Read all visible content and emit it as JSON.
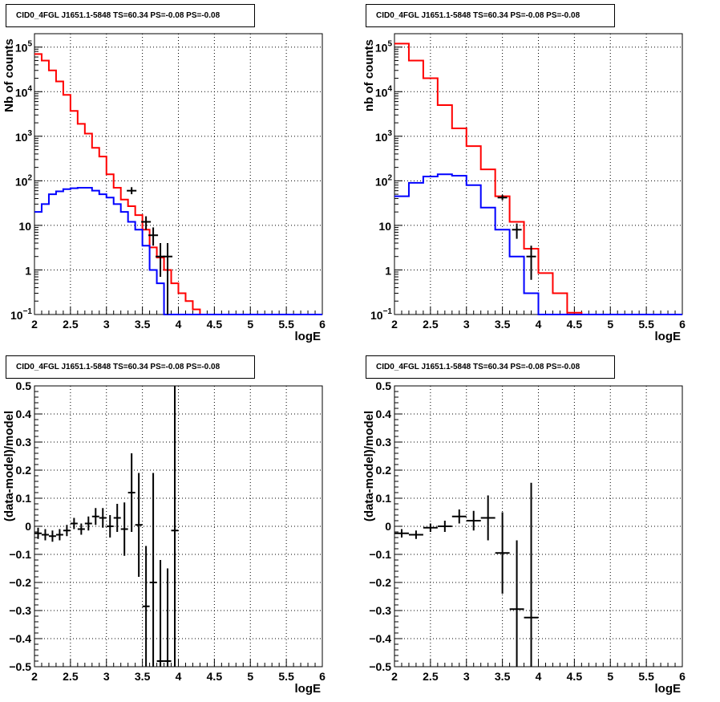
{
  "chart_data": [
    {
      "type": "line",
      "title": "CID0_4FGL J1651.1-5848 TS=60.34 PS=-0.08 PS=-0.08",
      "xlabel": "logE",
      "ylabel": "Nb of counts",
      "xlim": [
        2,
        6
      ],
      "ylim": [
        0.1,
        200000
      ],
      "yscale": "log",
      "grid": true,
      "xticks": [
        "2",
        "2.5",
        "3",
        "3.5",
        "4",
        "4.5",
        "5",
        "5.5",
        "6"
      ],
      "yticks": [
        {
          "v": 0.1,
          "base": "10",
          "exp": "−1"
        },
        {
          "v": 1,
          "base": "1",
          "exp": ""
        },
        {
          "v": 10,
          "base": "10",
          "exp": ""
        },
        {
          "v": 100,
          "base": "10",
          "exp": "2"
        },
        {
          "v": 1000,
          "base": "10",
          "exp": "3"
        },
        {
          "v": 10000,
          "base": "10",
          "exp": "4"
        },
        {
          "v": 100000,
          "base": "10",
          "exp": "5"
        }
      ],
      "bin_edges": [
        2.0,
        2.1,
        2.2,
        2.3,
        2.4,
        2.5,
        2.6,
        2.7,
        2.8,
        2.9,
        3.0,
        3.1,
        3.2,
        3.3,
        3.4,
        3.5,
        3.6,
        3.7,
        3.8,
        3.9,
        4.0,
        4.1,
        4.2,
        4.3,
        4.4,
        4.5,
        4.6,
        4.7,
        4.8,
        4.9,
        5.0,
        5.1,
        5.2,
        5.3,
        5.4,
        5.5,
        5.6,
        5.7,
        5.8,
        5.9,
        6.0
      ],
      "series": [
        {
          "color": "#ff0000",
          "style": "step",
          "values": [
            70000,
            50000,
            30000,
            17000,
            8500,
            3700,
            1900,
            1150,
            550,
            350,
            140,
            70,
            38,
            27,
            17,
            8,
            3.2,
            1.9,
            1.0,
            0.5,
            0.3,
            0.2,
            0.13,
            0.1,
            0.1,
            0.1,
            0.1,
            0.1,
            0.1,
            0.1,
            0.1,
            0.1,
            0.1,
            0.1,
            0.1,
            0.1,
            0.1,
            0.1,
            0.1,
            0.1
          ]
        },
        {
          "color": "#0000ff",
          "style": "step",
          "values": [
            20,
            30,
            50,
            58,
            65,
            68,
            70,
            70,
            60,
            50,
            42,
            30,
            20,
            12,
            8,
            3.5,
            1.0,
            0.5,
            0.1,
            0.1,
            0.1,
            0.1,
            0.1,
            0.1,
            0.1,
            0.1,
            0.1,
            0.1,
            0.1,
            0.1,
            0.1,
            0.1,
            0.1,
            0.1,
            0.1,
            0.1,
            0.1,
            0.1,
            0.1,
            0.1
          ]
        },
        {
          "color": "#000000",
          "style": "errorbar",
          "points": [
            {
              "x": 3.35,
              "y": 60,
              "ylo": 50,
              "yhi": 72
            },
            {
              "x": 3.55,
              "y": 12,
              "ylo": 8,
              "yhi": 16
            },
            {
              "x": 3.65,
              "y": 6,
              "ylo": 3.5,
              "yhi": 9
            },
            {
              "x": 3.75,
              "y": 2,
              "ylo": 0.7,
              "yhi": 4
            },
            {
              "x": 3.85,
              "y": 2,
              "ylo": 0.1,
              "yhi": 4
            }
          ]
        }
      ]
    },
    {
      "type": "line",
      "title": "CID0_4FGL J1651.1-5848 TS=60.34 PS=-0.08 PS=-0.08",
      "xlabel": "logE",
      "ylabel": "nb of counts",
      "xlim": [
        2,
        6
      ],
      "ylim": [
        0.1,
        200000
      ],
      "yscale": "log",
      "grid": true,
      "xticks": [
        "2",
        "2.5",
        "3",
        "3.5",
        "4",
        "4.5",
        "5",
        "5.5",
        "6"
      ],
      "yticks": [
        {
          "v": 0.1,
          "base": "10",
          "exp": "−1"
        },
        {
          "v": 1,
          "base": "1",
          "exp": ""
        },
        {
          "v": 10,
          "base": "10",
          "exp": ""
        },
        {
          "v": 100,
          "base": "10",
          "exp": "2"
        },
        {
          "v": 1000,
          "base": "10",
          "exp": "3"
        },
        {
          "v": 10000,
          "base": "10",
          "exp": "4"
        },
        {
          "v": 100000,
          "base": "10",
          "exp": "5"
        }
      ],
      "bin_edges": [
        2.0,
        2.2,
        2.4,
        2.6,
        2.8,
        3.0,
        3.2,
        3.4,
        3.6,
        3.8,
        4.0,
        4.2,
        4.4,
        4.6,
        4.8,
        5.0,
        5.2,
        5.4,
        5.6,
        5.8,
        6.0
      ],
      "series": [
        {
          "color": "#ff0000",
          "style": "step",
          "values": [
            120000,
            50000,
            20000,
            5000,
            1500,
            600,
            180,
            45,
            12,
            3,
            0.85,
            0.3,
            0.11,
            0.1,
            0.1,
            0.1,
            0.1,
            0.1,
            0.1,
            0.1
          ]
        },
        {
          "color": "#0000ff",
          "style": "step",
          "values": [
            45,
            90,
            125,
            140,
            130,
            80,
            25,
            8,
            2,
            0.3,
            0.1,
            0.1,
            0.1,
            0.1,
            0.1,
            0.1,
            0.1,
            0.1,
            0.1,
            0.1
          ]
        },
        {
          "color": "#000000",
          "style": "errorbar",
          "points": [
            {
              "x": 3.5,
              "y": 42,
              "ylo": 37,
              "yhi": 48
            },
            {
              "x": 3.7,
              "y": 8,
              "ylo": 5,
              "yhi": 11
            },
            {
              "x": 3.9,
              "y": 2,
              "ylo": 0.6,
              "yhi": 3.5
            }
          ]
        }
      ]
    },
    {
      "type": "scatter",
      "title": "CID0_4FGL J1651.1-5848 TS=60.34 PS=-0.08 PS=-0.08",
      "xlabel": "logE",
      "ylabel": "(data-model)/model",
      "xlim": [
        2,
        6
      ],
      "ylim": [
        -0.5,
        0.5
      ],
      "yscale": "linear",
      "grid": true,
      "xticks": [
        "2",
        "2.5",
        "3",
        "3.5",
        "4",
        "4.5",
        "5",
        "5.5",
        "6"
      ],
      "yticks": [
        {
          "v": -0.5,
          "label": "−0.5"
        },
        {
          "v": -0.4,
          "label": "−0.4"
        },
        {
          "v": -0.3,
          "label": "−0.3"
        },
        {
          "v": -0.2,
          "label": "−0.2"
        },
        {
          "v": -0.1,
          "label": "−0.1"
        },
        {
          "v": 0,
          "label": "0"
        },
        {
          "v": 0.1,
          "label": "0.1"
        },
        {
          "v": 0.2,
          "label": "0.2"
        },
        {
          "v": 0.3,
          "label": "0.3"
        },
        {
          "v": 0.4,
          "label": "0.4"
        },
        {
          "v": 0.5,
          "label": "0.5"
        }
      ],
      "bin_width": 0.1,
      "series": [
        {
          "color": "#000000",
          "style": "errorbar",
          "points": [
            {
              "x": 2.05,
              "y": -0.025,
              "err": 0.02
            },
            {
              "x": 2.15,
              "y": -0.03,
              "err": 0.02
            },
            {
              "x": 2.25,
              "y": -0.035,
              "err": 0.02
            },
            {
              "x": 2.35,
              "y": -0.03,
              "err": 0.02
            },
            {
              "x": 2.45,
              "y": -0.015,
              "err": 0.02
            },
            {
              "x": 2.55,
              "y": 0.01,
              "err": 0.02
            },
            {
              "x": 2.65,
              "y": -0.01,
              "err": 0.02
            },
            {
              "x": 2.75,
              "y": 0.01,
              "err": 0.025
            },
            {
              "x": 2.85,
              "y": 0.035,
              "err": 0.03
            },
            {
              "x": 2.95,
              "y": 0.03,
              "err": 0.035
            },
            {
              "x": 3.05,
              "y": 0.0,
              "err": 0.04
            },
            {
              "x": 3.15,
              "y": 0.03,
              "err": 0.05
            },
            {
              "x": 3.25,
              "y": -0.01,
              "err": 0.095
            },
            {
              "x": 3.35,
              "y": 0.12,
              "err": 0.14
            },
            {
              "x": 3.45,
              "y": 0.005,
              "err": 0.185
            },
            {
              "x": 3.55,
              "y": -0.285,
              "err": 0.215
            },
            {
              "x": 3.65,
              "y": -0.2,
              "err": 0.39
            },
            {
              "x": 3.75,
              "y": -0.48,
              "err": 0.36
            },
            {
              "x": 3.85,
              "y": -0.48,
              "err": 0.33
            },
            {
              "x": 3.95,
              "y": -0.015,
              "err": 0.6
            }
          ]
        }
      ]
    },
    {
      "type": "scatter",
      "title": "CID0_4FGL J1651.1-5848 TS=60.34 PS=-0.08 PS=-0.08",
      "xlabel": "logE",
      "ylabel": "(data-model)/model",
      "xlim": [
        2,
        6
      ],
      "ylim": [
        -0.5,
        0.5
      ],
      "yscale": "linear",
      "grid": true,
      "xticks": [
        "2",
        "2.5",
        "3",
        "3.5",
        "4",
        "4.5",
        "5",
        "5.5",
        "6"
      ],
      "yticks": [
        {
          "v": -0.5,
          "label": "−0.5"
        },
        {
          "v": -0.4,
          "label": "−0.4"
        },
        {
          "v": -0.3,
          "label": "−0.3"
        },
        {
          "v": -0.2,
          "label": "−0.2"
        },
        {
          "v": -0.1,
          "label": "−0.1"
        },
        {
          "v": 0,
          "label": "0"
        },
        {
          "v": 0.1,
          "label": "0.1"
        },
        {
          "v": 0.2,
          "label": "0.2"
        },
        {
          "v": 0.3,
          "label": "0.3"
        },
        {
          "v": 0.4,
          "label": "0.4"
        },
        {
          "v": 0.5,
          "label": "0.5"
        }
      ],
      "bin_width": 0.2,
      "series": [
        {
          "color": "#000000",
          "style": "errorbar",
          "points": [
            {
              "x": 2.1,
              "y": -0.025,
              "err": 0.015
            },
            {
              "x": 2.3,
              "y": -0.03,
              "err": 0.015
            },
            {
              "x": 2.5,
              "y": -0.005,
              "err": 0.015
            },
            {
              "x": 2.7,
              "y": 0.0,
              "err": 0.02
            },
            {
              "x": 2.9,
              "y": 0.035,
              "err": 0.025
            },
            {
              "x": 3.1,
              "y": 0.02,
              "err": 0.035
            },
            {
              "x": 3.3,
              "y": 0.03,
              "err": 0.08
            },
            {
              "x": 3.5,
              "y": -0.095,
              "err": 0.145
            },
            {
              "x": 3.7,
              "y": -0.295,
              "err": 0.245
            },
            {
              "x": 3.9,
              "y": -0.325,
              "err": 0.48
            }
          ]
        }
      ]
    }
  ]
}
